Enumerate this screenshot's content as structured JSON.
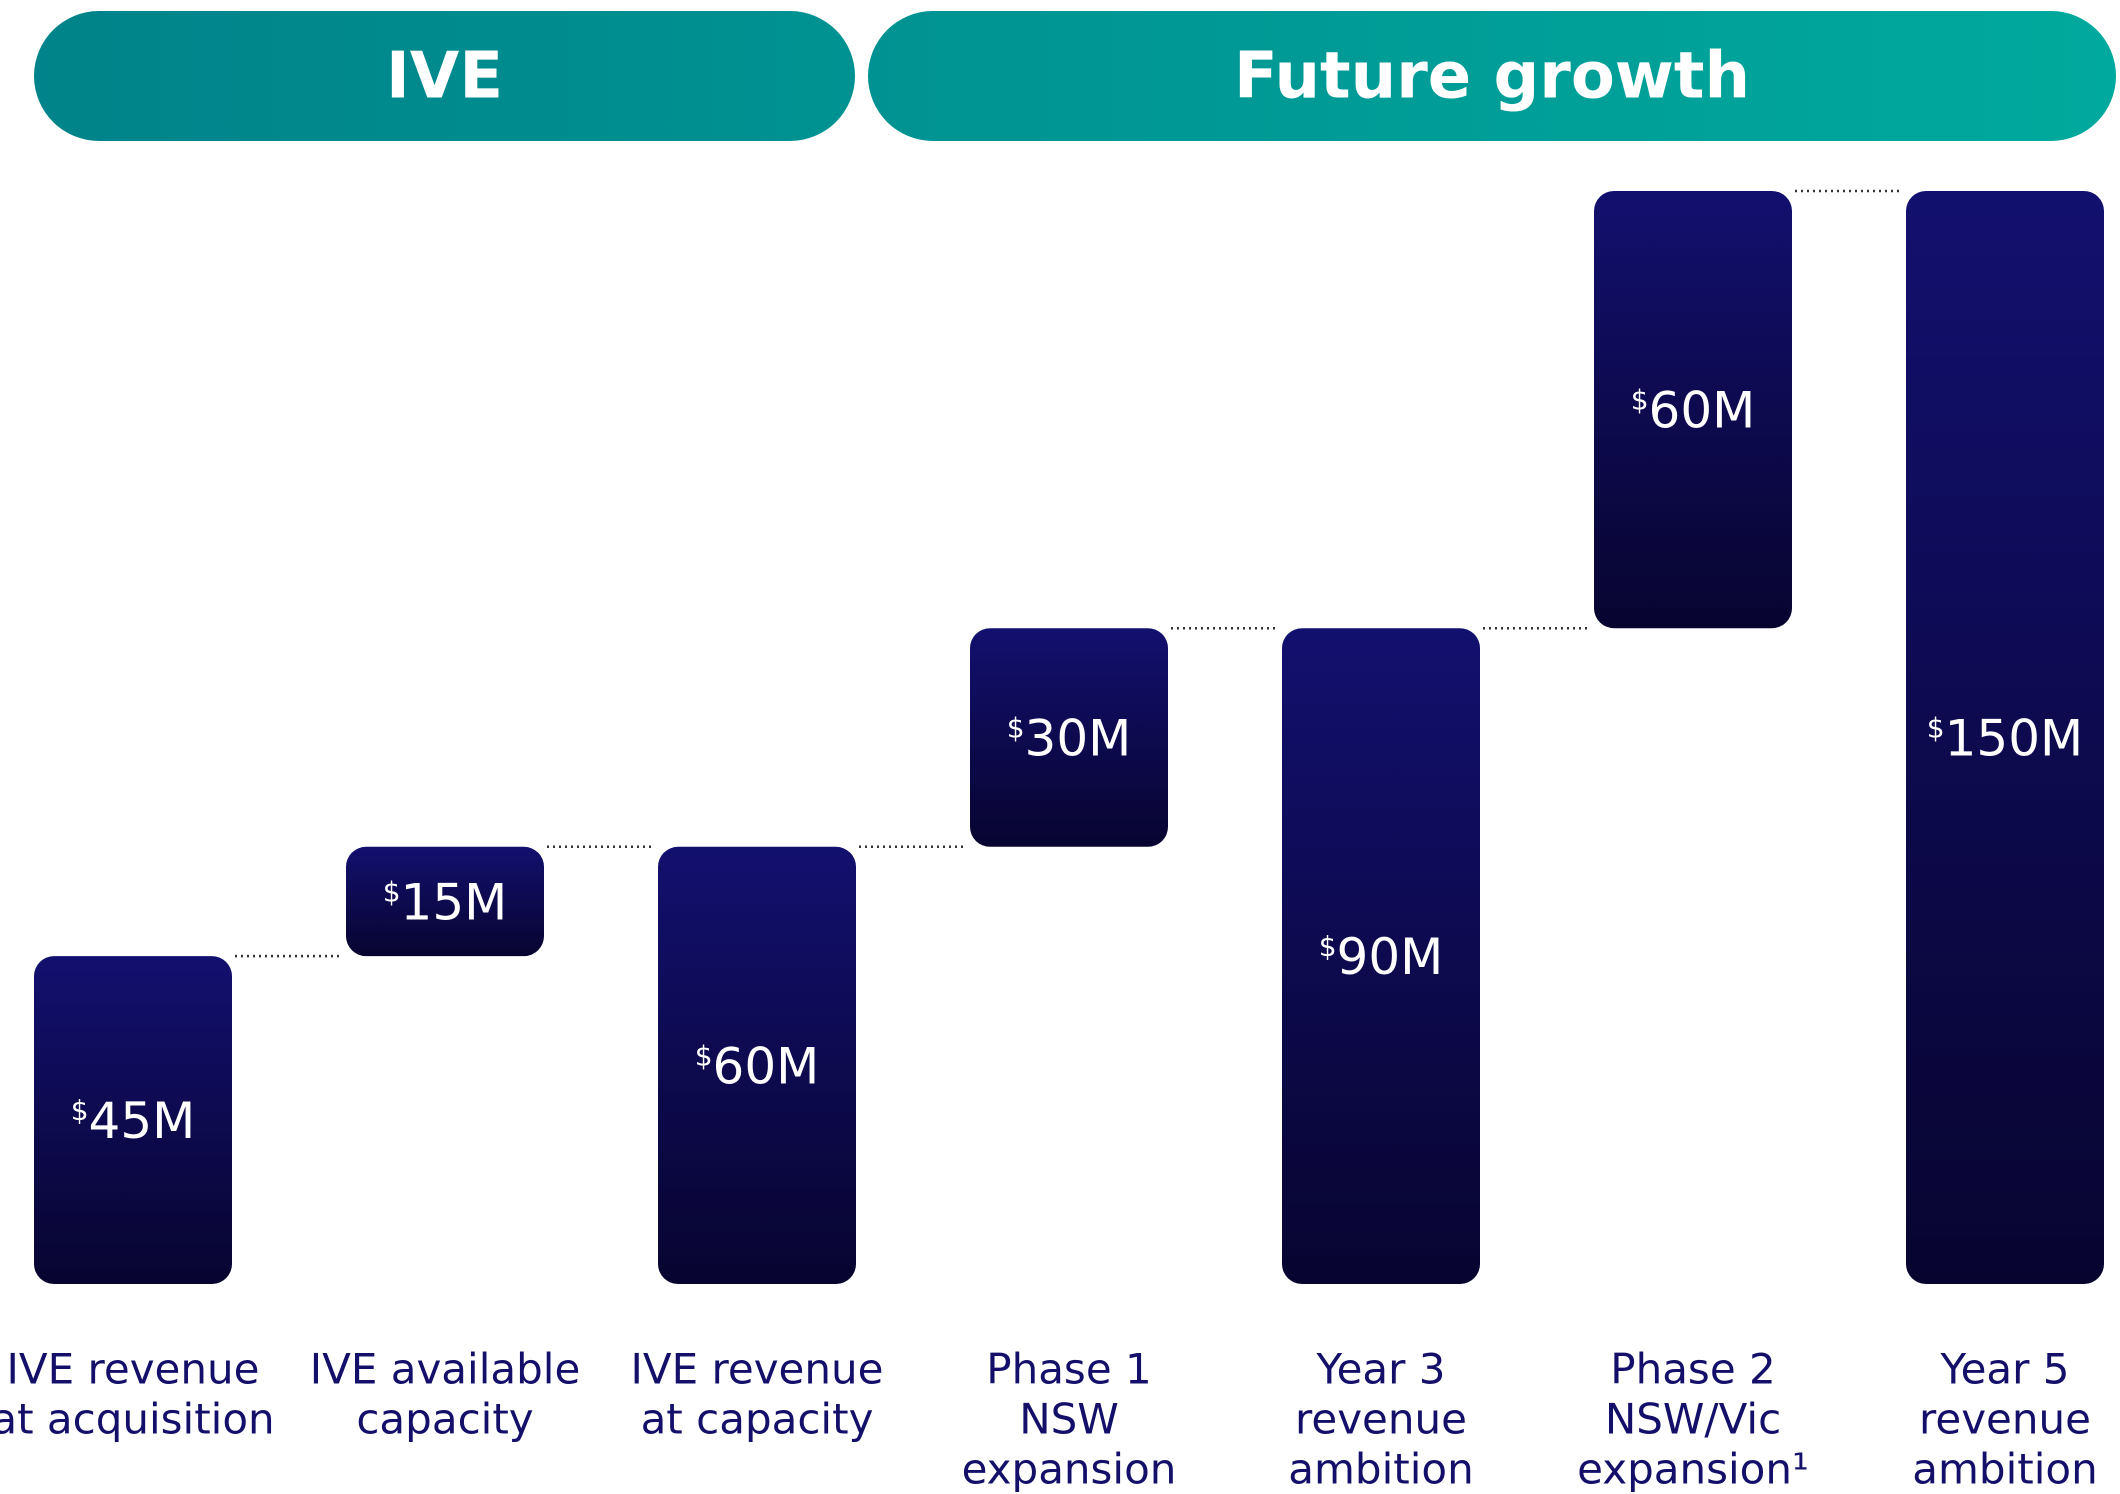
{
  "chart_data": {
    "type": "waterfall",
    "groups": [
      "IVE",
      "Future growth"
    ],
    "categories": [
      [
        "IVE revenue",
        "at acquisition"
      ],
      [
        "IVE available",
        "capacity"
      ],
      [
        "IVE revenue",
        "at capacity"
      ],
      [
        "Phase 1",
        "NSW",
        "expansion"
      ],
      [
        "Year 3",
        "revenue",
        "ambition"
      ],
      [
        "Phase 2",
        "NSW/Vic",
        "expansion¹"
      ],
      [
        "Year 5",
        "revenue",
        "ambition"
      ]
    ],
    "measure": [
      "absolute",
      "relative",
      "total",
      "relative",
      "total",
      "relative",
      "total"
    ],
    "values": [
      45,
      15,
      60,
      30,
      90,
      60,
      150
    ],
    "value_labels": [
      "$45M",
      "$15M",
      "$60M",
      "$30M",
      "$90M",
      "$60M",
      "$150M"
    ],
    "ylim": [
      0,
      150
    ],
    "color": [
      "#12106e",
      "#080430"
    ],
    "group_color": [
      "#00838a",
      "#00a99d"
    ]
  }
}
